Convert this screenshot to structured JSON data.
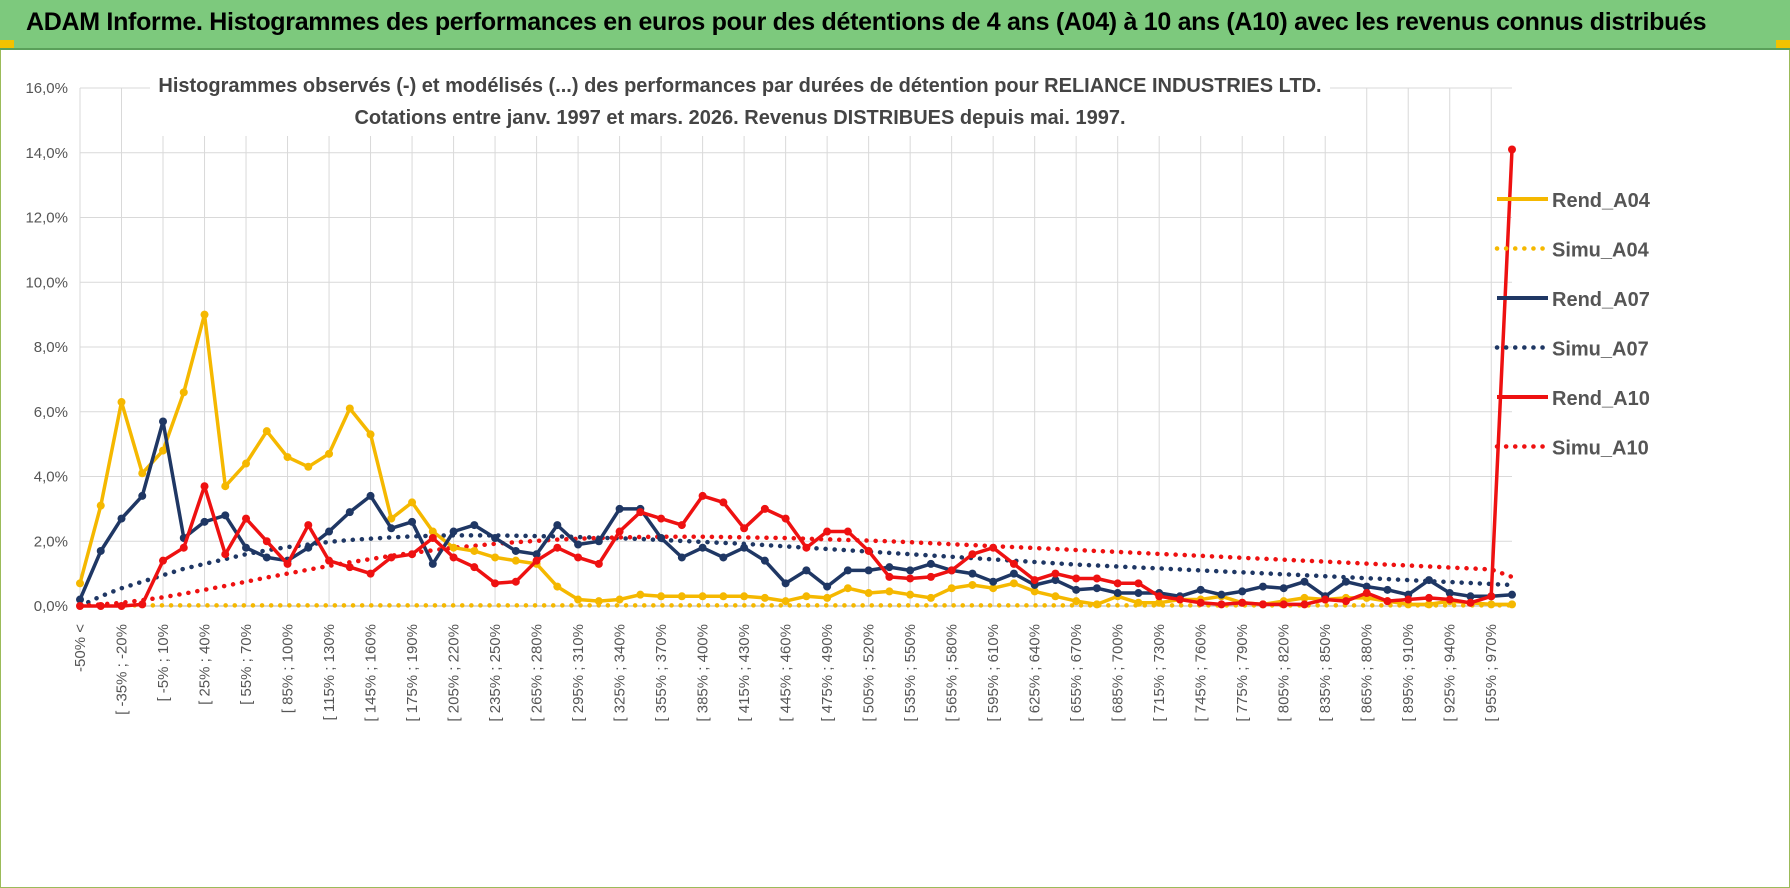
{
  "header": {
    "title": "ADAM Informe. Histogrammes des performances en euros pour des détentions de 4 ans (A04) à 10 ans (A10) avec les revenus connus distribués"
  },
  "colors": {
    "A04": "#f5b800",
    "A07": "#1f3764",
    "A10": "#ee1111",
    "grid": "#d9d9d9",
    "banner": "#7dc97d"
  },
  "chart_data": {
    "type": "line",
    "subtitle_lines": [
      "Histogrammes observés (-) et modélisés (...) des performances par durées de détention pour RELIANCE INDUSTRIES LTD.",
      "Cotations entre janv. 1997 et mars. 2026. Revenus DISTRIBUES depuis mai. 1997."
    ],
    "y_ticks": [
      "0,0%",
      "2,0%",
      "4,0%",
      "6,0%",
      "8,0%",
      "10,0%",
      "12,0%",
      "14,0%",
      "16,0%"
    ],
    "ylim": [
      0,
      16
    ],
    "x_tick_labels": [
      "-50% <",
      "[ -35% ; -20%",
      "[ -5% ; 10%",
      "[ 25% ; 40%",
      "[ 55% ; 70%",
      "[ 85% ; 100%",
      "[ 115% ; 130%",
      "[ 145% ; 160%",
      "[ 175% ; 190%",
      "[ 205% ; 220%",
      "[ 235% ; 250%",
      "[ 265% ; 280%",
      "[ 295% ; 310%",
      "[ 325% ; 340%",
      "[ 355% ; 370%",
      "[ 385% ; 400%",
      "[ 415% ; 430%",
      "[ 445% ; 460%",
      "[ 475% ; 490%",
      "[ 505% ; 520%",
      "[ 535% ; 550%",
      "[ 565% ; 580%",
      "[ 595% ; 610%",
      "[ 625% ; 640%",
      "[ 655% ; 670%",
      "[ 685% ; 700%",
      "[ 715% ; 730%",
      "[ 745% ; 760%",
      "[ 775% ; 790%",
      "[ 805% ; 820%",
      "[ 835% ; 850%",
      "[ 865% ; 880%",
      "[ 895% ; 910%",
      "[ 925% ; 940%",
      "[ 955% ; 970%"
    ],
    "n_categories": 70,
    "legend": {
      "position": "right",
      "entries": [
        {
          "name": "Rend_A04",
          "color": "#f5b800",
          "style": "solid"
        },
        {
          "name": "Simu_A04",
          "color": "#f5b800",
          "style": "dotted"
        },
        {
          "name": "Rend_A07",
          "color": "#1f3764",
          "style": "solid"
        },
        {
          "name": "Simu_A07",
          "color": "#1f3764",
          "style": "dotted"
        },
        {
          "name": "Rend_A10",
          "color": "#ee1111",
          "style": "solid"
        },
        {
          "name": "Simu_A10",
          "color": "#ee1111",
          "style": "dotted"
        }
      ]
    },
    "series": [
      {
        "name": "Rend_A04",
        "color": "#f5b800",
        "style": "solid",
        "values": [
          0.7,
          3.1,
          6.3,
          4.1,
          4.8,
          6.6,
          9.0,
          3.7,
          4.4,
          5.4,
          4.6,
          4.3,
          4.7,
          6.1,
          5.3,
          2.7,
          3.2,
          2.3,
          1.8,
          1.7,
          1.5,
          1.4,
          1.3,
          0.6,
          0.2,
          0.15,
          0.2,
          0.35,
          0.3,
          0.3,
          0.3,
          0.3,
          0.3,
          0.25,
          0.15,
          0.3,
          0.25,
          0.55,
          0.4,
          0.45,
          0.35,
          0.25,
          0.55,
          0.65,
          0.55,
          0.7,
          0.45,
          0.3,
          0.15,
          0.05,
          0.3,
          0.1,
          0.1,
          0.2,
          0.2,
          0.3,
          0.1,
          0.05,
          0.15,
          0.25,
          0.2,
          0.25,
          0.25,
          0.15,
          0.05,
          0.05,
          0.15,
          0.1,
          0.05,
          0.05
        ]
      },
      {
        "name": "Simu_A04",
        "color": "#f5b800",
        "style": "dotted",
        "values": [
          0.02,
          0.02,
          0.02,
          0.02,
          0.02,
          0.02,
          0.02,
          0.02,
          0.02,
          0.02,
          0.02,
          0.02,
          0.02,
          0.02,
          0.02,
          0.02,
          0.02,
          0.02,
          0.02,
          0.02,
          0.02,
          0.02,
          0.02,
          0.02,
          0.02,
          0.02,
          0.02,
          0.02,
          0.02,
          0.02,
          0.02,
          0.02,
          0.02,
          0.02,
          0.02,
          0.02,
          0.02,
          0.02,
          0.02,
          0.02,
          0.02,
          0.02,
          0.02,
          0.02,
          0.02,
          0.02,
          0.02,
          0.02,
          0.02,
          0.02,
          0.02,
          0.02,
          0.02,
          0.02,
          0.02,
          0.02,
          0.02,
          0.02,
          0.02,
          0.02,
          0.02,
          0.02,
          0.02,
          0.02,
          0.02,
          0.02,
          0.02,
          0.02,
          0.02,
          0.02
        ]
      },
      {
        "name": "Rend_A07",
        "color": "#1f3764",
        "style": "solid",
        "values": [
          0.2,
          1.7,
          2.7,
          3.4,
          5.7,
          2.1,
          2.6,
          2.8,
          1.8,
          1.5,
          1.4,
          1.8,
          2.3,
          2.9,
          3.4,
          2.4,
          2.6,
          1.3,
          2.3,
          2.5,
          2.1,
          1.7,
          1.6,
          2.5,
          1.9,
          2.0,
          3.0,
          3.0,
          2.1,
          1.5,
          1.8,
          1.5,
          1.8,
          1.4,
          0.7,
          1.1,
          0.6,
          1.1,
          1.1,
          1.2,
          1.1,
          1.3,
          1.1,
          1.0,
          0.75,
          1.0,
          0.65,
          0.8,
          0.5,
          0.55,
          0.4,
          0.4,
          0.4,
          0.3,
          0.5,
          0.35,
          0.45,
          0.6,
          0.55,
          0.75,
          0.3,
          0.75,
          0.6,
          0.5,
          0.35,
          0.8,
          0.4,
          0.3,
          0.3,
          0.35
        ]
      },
      {
        "name": "Simu_A07",
        "color": "#1f3764",
        "style": "dotted",
        "values": [
          0.0,
          0.3,
          0.55,
          0.75,
          0.95,
          1.15,
          1.3,
          1.45,
          1.6,
          1.72,
          1.82,
          1.9,
          1.98,
          2.04,
          2.08,
          2.12,
          2.15,
          2.17,
          2.18,
          2.18,
          2.18,
          2.17,
          2.16,
          2.15,
          2.13,
          2.11,
          2.09,
          2.07,
          2.04,
          2.01,
          1.98,
          1.95,
          1.92,
          1.88,
          1.84,
          1.8,
          1.76,
          1.72,
          1.68,
          1.64,
          1.6,
          1.56,
          1.52,
          1.48,
          1.44,
          1.4,
          1.36,
          1.32,
          1.28,
          1.25,
          1.22,
          1.19,
          1.16,
          1.13,
          1.1,
          1.07,
          1.04,
          1.01,
          0.98,
          0.95,
          0.92,
          0.89,
          0.86,
          0.83,
          0.8,
          0.77,
          0.74,
          0.71,
          0.68,
          0.65
        ]
      },
      {
        "name": "Rend_A10",
        "color": "#ee1111",
        "style": "solid",
        "values": [
          0.0,
          0.0,
          0.0,
          0.05,
          1.4,
          1.8,
          3.7,
          1.6,
          2.7,
          2.0,
          1.3,
          2.5,
          1.4,
          1.2,
          1.0,
          1.5,
          1.6,
          2.1,
          1.5,
          1.2,
          0.7,
          0.75,
          1.4,
          1.8,
          1.5,
          1.3,
          2.3,
          2.9,
          2.7,
          2.5,
          3.4,
          3.2,
          2.4,
          3.0,
          2.7,
          1.8,
          2.3,
          2.3,
          1.7,
          0.9,
          0.85,
          0.9,
          1.1,
          1.6,
          1.8,
          1.3,
          0.8,
          1.0,
          0.85,
          0.85,
          0.7,
          0.7,
          0.3,
          0.2,
          0.1,
          0.05,
          0.1,
          0.05,
          0.05,
          0.05,
          0.2,
          0.15,
          0.4,
          0.15,
          0.2,
          0.25,
          0.2,
          0.1,
          0.3,
          14.1
        ]
      },
      {
        "name": "Simu_A10",
        "color": "#ee1111",
        "style": "dotted",
        "values": [
          0.0,
          0.05,
          0.1,
          0.18,
          0.27,
          0.38,
          0.5,
          0.62,
          0.75,
          0.88,
          1.0,
          1.12,
          1.24,
          1.35,
          1.45,
          1.55,
          1.64,
          1.72,
          1.8,
          1.86,
          1.92,
          1.97,
          2.01,
          2.05,
          2.08,
          2.1,
          2.12,
          2.13,
          2.14,
          2.14,
          2.14,
          2.13,
          2.12,
          2.11,
          2.1,
          2.08,
          2.06,
          2.04,
          2.02,
          2.0,
          1.97,
          1.94,
          1.91,
          1.88,
          1.85,
          1.82,
          1.79,
          1.76,
          1.73,
          1.7,
          1.67,
          1.64,
          1.61,
          1.58,
          1.55,
          1.52,
          1.49,
          1.46,
          1.43,
          1.4,
          1.37,
          1.34,
          1.31,
          1.28,
          1.25,
          1.22,
          1.19,
          1.16,
          1.13,
          0.9
        ]
      }
    ]
  }
}
